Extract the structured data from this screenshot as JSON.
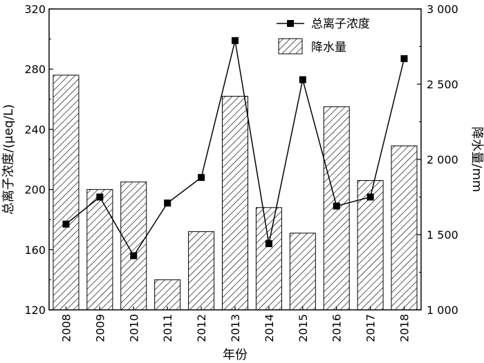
{
  "chart_data": {
    "type": "bar+line",
    "categories": [
      "2008",
      "2009",
      "2010",
      "2011",
      "2012",
      "2013",
      "2014",
      "2015",
      "2016",
      "2017",
      "2018"
    ],
    "xlabel": "年份",
    "ylabel_left": "总离子浓度/(μeq/L)",
    "ylabel_right": "降水量/mm",
    "ylim_left": [
      120,
      320
    ],
    "ylim_right": [
      1000,
      3000
    ],
    "yticks_left": [
      "120",
      "160",
      "200",
      "240",
      "280",
      "320"
    ],
    "yticks_right": [
      "1 000",
      "1 500",
      "2 000",
      "2 500",
      "3 000"
    ],
    "series": [
      {
        "name": "总离子浓度",
        "type": "line",
        "axis": "left",
        "marker": "square",
        "values": [
          177,
          195,
          156,
          191,
          208,
          299,
          164,
          273,
          189,
          195,
          287
        ]
      },
      {
        "name": "降水量",
        "type": "bar",
        "axis": "right",
        "pattern": "hatch",
        "values": [
          2560,
          1800,
          1850,
          1200,
          1520,
          2420,
          1680,
          1510,
          2350,
          1860,
          2090
        ]
      }
    ],
    "legend_position": "top-right",
    "grid": false
  }
}
